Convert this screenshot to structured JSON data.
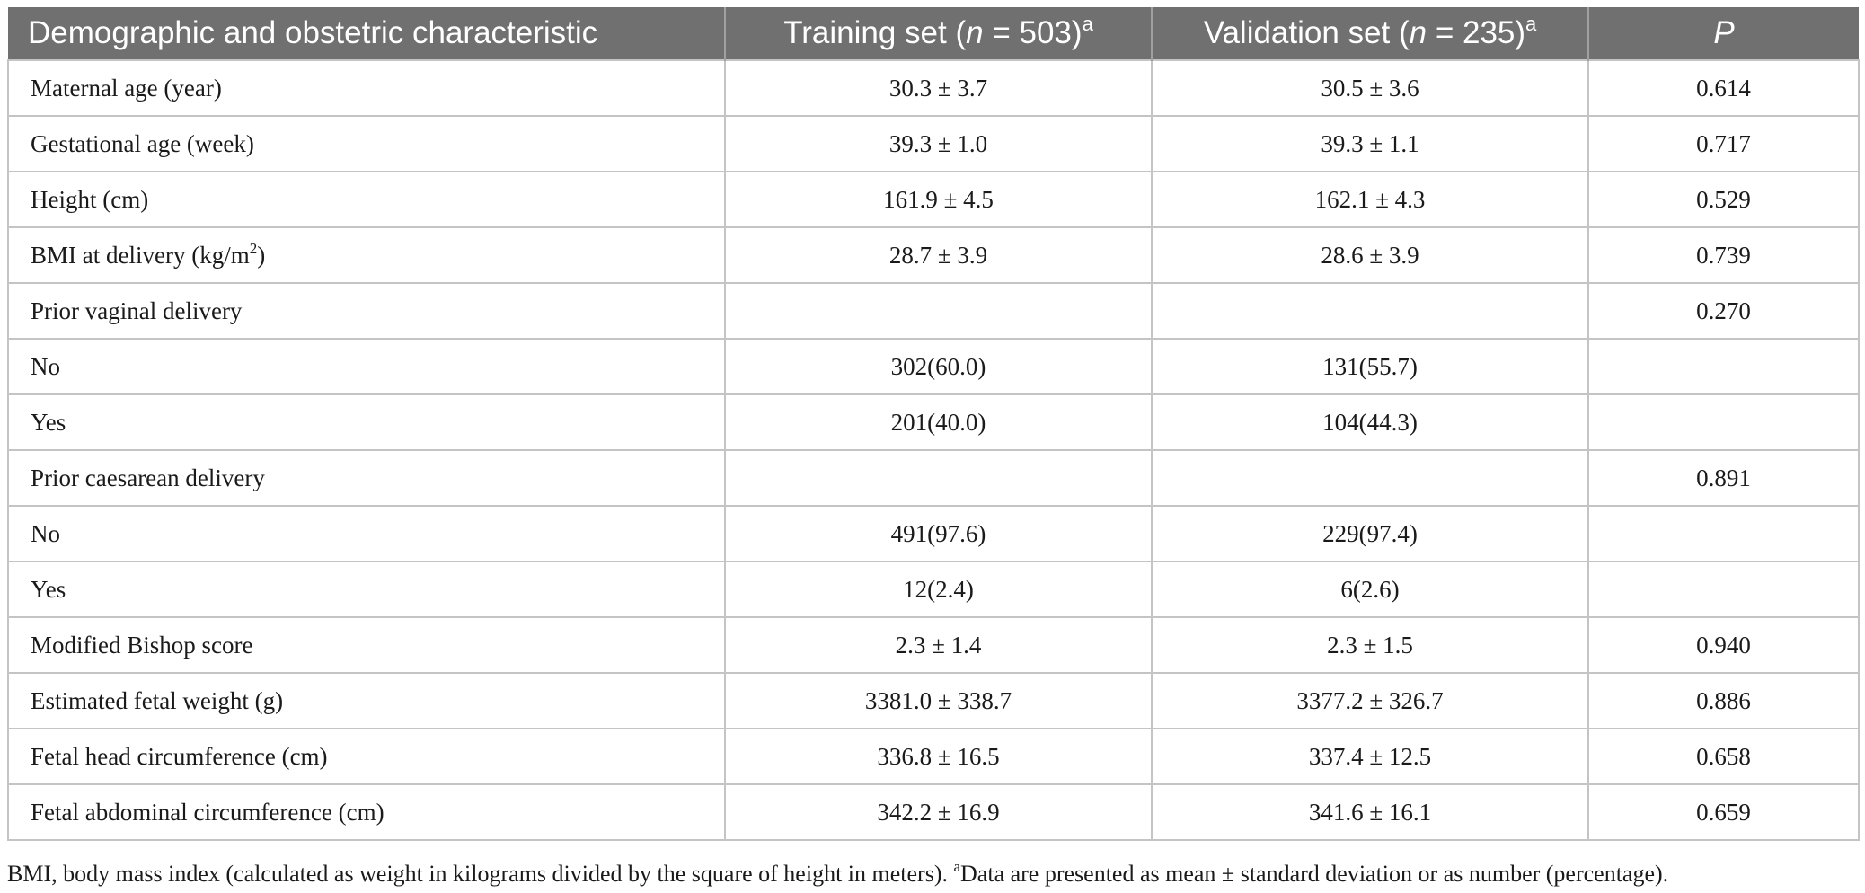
{
  "header": {
    "col1": "Demographic and obstetric characteristic",
    "col2_prefix": "Training set (",
    "col2_n": "n",
    "col2_value": " = 503)",
    "col2_sup": "a",
    "col3_prefix": "Validation set (",
    "col3_n": "n",
    "col3_value": " = 235)",
    "col3_sup": "a",
    "col4": "P"
  },
  "rows": [
    {
      "label": "Maternal age (year)",
      "training": "30.3 ± 3.7",
      "validation": "30.5 ± 3.6",
      "p": "0.614"
    },
    {
      "label": "Gestational age (week)",
      "training": "39.3 ± 1.0",
      "validation": "39.3 ± 1.1",
      "p": "0.717"
    },
    {
      "label": "Height (cm)",
      "training": "161.9 ± 4.5",
      "validation": "162.1 ± 4.3",
      "p": "0.529"
    },
    {
      "label": "BMI at delivery (kg/m",
      "label_sup": "2",
      "label_suffix": ")",
      "training": "28.7 ± 3.9",
      "validation": "28.6 ± 3.9",
      "p": "0.739"
    },
    {
      "label": "Prior vaginal delivery",
      "training": "",
      "validation": "",
      "p": "0.270"
    },
    {
      "label": "No",
      "training": "302(60.0)",
      "validation": "131(55.7)",
      "p": ""
    },
    {
      "label": "Yes",
      "training": "201(40.0)",
      "validation": "104(44.3)",
      "p": ""
    },
    {
      "label": "Prior caesarean delivery",
      "training": "",
      "validation": "",
      "p": "0.891"
    },
    {
      "label": "No",
      "training": "491(97.6)",
      "validation": "229(97.4)",
      "p": ""
    },
    {
      "label": "Yes",
      "training": "12(2.4)",
      "validation": "6(2.6)",
      "p": ""
    },
    {
      "label": "Modified Bishop score",
      "training": "2.3 ± 1.4",
      "validation": "2.3 ± 1.5",
      "p": "0.940"
    },
    {
      "label": "Estimated fetal weight (g)",
      "training": "3381.0 ± 338.7",
      "validation": "3377.2 ± 326.7",
      "p": "0.886"
    },
    {
      "label": "Fetal head circumference (cm)",
      "training": "336.8 ± 16.5",
      "validation": "337.4 ± 12.5",
      "p": "0.658"
    },
    {
      "label": "Fetal abdominal circumference (cm)",
      "training": "342.2 ± 16.9",
      "validation": "341.6 ± 16.1",
      "p": "0.659"
    }
  ],
  "footnote": {
    "part1": "BMI, body mass index (calculated as weight in kilograms divided by the square of height in meters). ",
    "sup": "a",
    "part2": "Data are presented as mean ± standard deviation or as number (percentage)."
  }
}
